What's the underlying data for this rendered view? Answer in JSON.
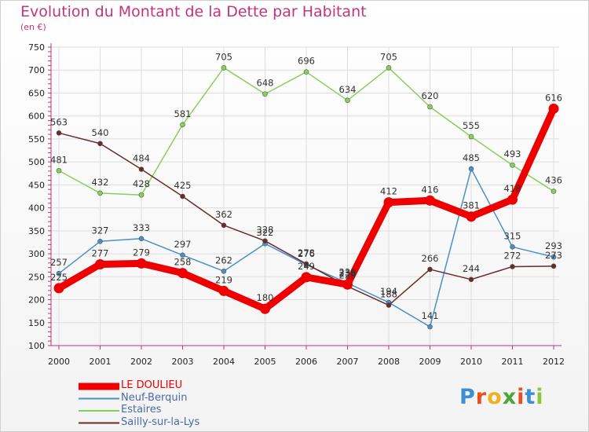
{
  "title": "Evolution du Montant de la Dette par Habitant",
  "subtitle": "(en €)",
  "logo": {
    "text": "Proxiti",
    "colors": [
      "#3d8fd1",
      "#e84f1c",
      "#ecb21f",
      "#4aa53b",
      "#e84f1c",
      "#3d8fd1",
      "#8fc43e"
    ]
  },
  "chart_data": {
    "type": "line",
    "x": [
      "2000",
      "2001",
      "2002",
      "2003",
      "2004",
      "2005",
      "2006",
      "2007",
      "2008",
      "2009",
      "2010",
      "2011",
      "2012"
    ],
    "ylim": [
      100,
      750
    ],
    "yticks": [
      100,
      150,
      200,
      250,
      300,
      350,
      400,
      450,
      500,
      550,
      600,
      650,
      700,
      750
    ],
    "grid": true,
    "legend": "bottom-left",
    "series": [
      {
        "name": "LE DOULIEU",
        "color": "#ee0000",
        "width": 9,
        "values": [
          225,
          277,
          279,
          258,
          219,
          180,
          249,
          233,
          412,
          416,
          381,
          418,
          616
        ],
        "labels": [
          "225",
          "277",
          "279",
          "258",
          "219",
          "180",
          "249",
          "233",
          "412",
          "416",
          "381",
          "418",
          "616"
        ]
      },
      {
        "name": "Neuf-Berquin",
        "color": "#4a90c8",
        "width": 1.5,
        "values": [
          257,
          327,
          333,
          297,
          262,
          322,
          276,
          236,
          194,
          141,
          485,
          315,
          293
        ],
        "labels": [
          "257",
          "327",
          "333",
          "297",
          "262",
          "322",
          "276",
          "236",
          "194",
          "141",
          "485",
          "315",
          "293"
        ]
      },
      {
        "name": "Estaires",
        "color": "#86d15a",
        "width": 1.5,
        "values": [
          481,
          432,
          428,
          581,
          705,
          648,
          696,
          634,
          705,
          620,
          555,
          493,
          436
        ],
        "labels": [
          "481",
          "432",
          "428",
          "581",
          "705",
          "648",
          "696",
          "634",
          "705",
          "620",
          "555",
          "493",
          "436"
        ]
      },
      {
        "name": "Sailly-sur-la-Lys",
        "color": "#6b2a2a",
        "width": 1.5,
        "values": [
          563,
          540,
          484,
          425,
          362,
          328,
          278,
          229,
          188,
          266,
          244,
          272,
          273
        ],
        "labels": [
          "563",
          "540",
          "484",
          "425",
          "362",
          "328",
          "278",
          "229",
          "188",
          "266",
          "244",
          "272",
          "273"
        ]
      }
    ]
  }
}
